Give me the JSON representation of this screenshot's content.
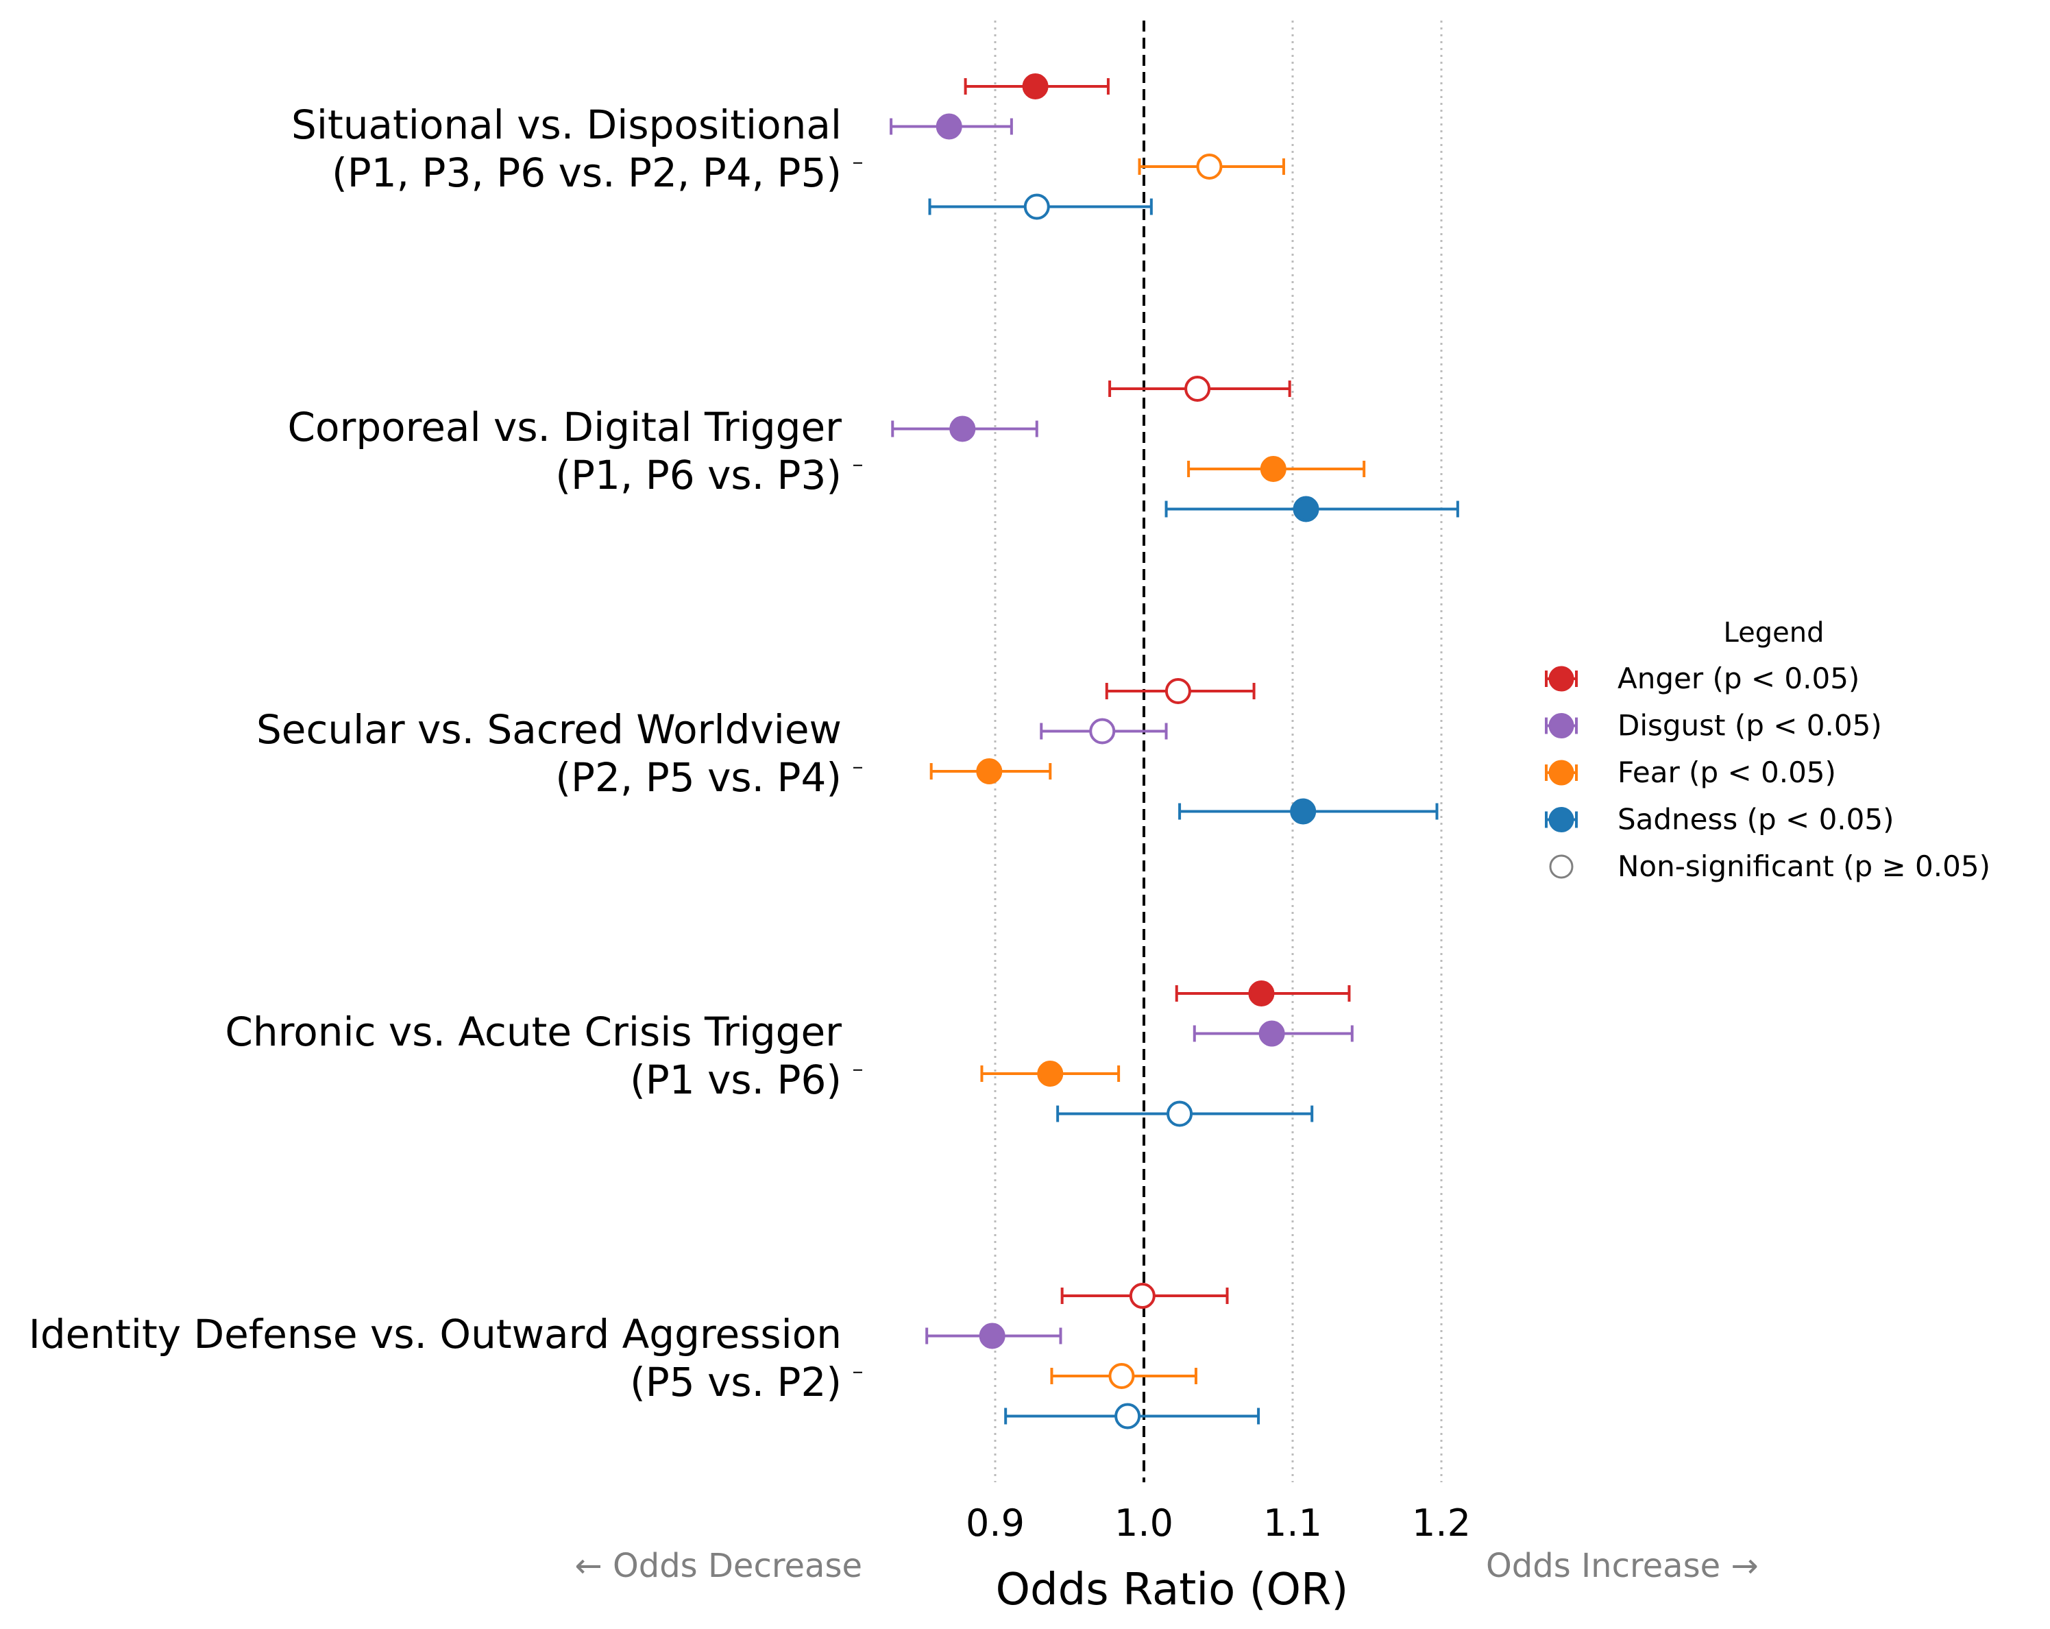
{
  "chart_data": {
    "type": "forest",
    "xlabel": "Odds Ratio (OR)",
    "x_ticks": [
      0.9,
      1.0,
      1.1,
      1.2
    ],
    "x_tick_labels": [
      "0.9",
      "1.0",
      "1.1",
      "1.2"
    ],
    "xlim": [
      0.815,
      1.235
    ],
    "reference_line": 1.0,
    "grid": "vertical-dotted",
    "annotation_left": "← Odds Decrease",
    "annotation_right": "Odds Increase →",
    "legend": {
      "title": "Legend",
      "position": "center-right",
      "items": [
        {
          "label": "Anger (p < 0.05)",
          "color": "#d62728",
          "filled": true
        },
        {
          "label": "Disgust (p < 0.05)",
          "color": "#9467bd",
          "filled": true
        },
        {
          "label": "Fear (p < 0.05)",
          "color": "#ff7f0e",
          "filled": true
        },
        {
          "label": "Sadness (p < 0.05)",
          "color": "#1f77b4",
          "filled": true
        },
        {
          "label": "Non-significant (p ≥ 0.05)",
          "color": "#808080",
          "filled": false
        }
      ]
    },
    "series": [
      {
        "name": "Anger",
        "color": "#d62728"
      },
      {
        "name": "Disgust",
        "color": "#9467bd"
      },
      {
        "name": "Fear",
        "color": "#ff7f0e"
      },
      {
        "name": "Sadness",
        "color": "#1f77b4"
      }
    ],
    "groups": [
      {
        "label_line1": "Situational vs. Dispositional",
        "label_line2": "(P1, P3, P6 vs. P2, P4, P5)",
        "rows": [
          {
            "series": "Anger",
            "or": 0.927,
            "lo": 0.88,
            "hi": 0.976,
            "significant": true
          },
          {
            "series": "Disgust",
            "or": 0.869,
            "lo": 0.83,
            "hi": 0.911,
            "significant": true
          },
          {
            "series": "Fear",
            "or": 1.044,
            "lo": 0.997,
            "hi": 1.094,
            "significant": false
          },
          {
            "series": "Sadness",
            "or": 0.928,
            "lo": 0.856,
            "hi": 1.005,
            "significant": false
          }
        ]
      },
      {
        "label_line1": "Corporeal vs. Digital Trigger",
        "label_line2": "(P1, P6 vs. P3)",
        "rows": [
          {
            "series": "Anger",
            "or": 1.036,
            "lo": 0.977,
            "hi": 1.098,
            "significant": false
          },
          {
            "series": "Disgust",
            "or": 0.878,
            "lo": 0.831,
            "hi": 0.928,
            "significant": true
          },
          {
            "series": "Fear",
            "or": 1.087,
            "lo": 1.03,
            "hi": 1.148,
            "significant": true
          },
          {
            "series": "Sadness",
            "or": 1.109,
            "lo": 1.015,
            "hi": 1.211,
            "significant": true
          }
        ]
      },
      {
        "label_line1": "Secular vs. Sacred Worldview",
        "label_line2": "(P2, P5 vs. P4)",
        "rows": [
          {
            "series": "Anger",
            "or": 1.023,
            "lo": 0.975,
            "hi": 1.074,
            "significant": false
          },
          {
            "series": "Disgust",
            "or": 0.972,
            "lo": 0.931,
            "hi": 1.015,
            "significant": false
          },
          {
            "series": "Fear",
            "or": 0.896,
            "lo": 0.857,
            "hi": 0.937,
            "significant": true
          },
          {
            "series": "Sadness",
            "or": 1.107,
            "lo": 1.024,
            "hi": 1.197,
            "significant": true
          }
        ]
      },
      {
        "label_line1": "Chronic vs. Acute Crisis Trigger",
        "label_line2": "(P1 vs. P6)",
        "rows": [
          {
            "series": "Anger",
            "or": 1.079,
            "lo": 1.022,
            "hi": 1.138,
            "significant": true
          },
          {
            "series": "Disgust",
            "or": 1.086,
            "lo": 1.034,
            "hi": 1.14,
            "significant": true
          },
          {
            "series": "Fear",
            "or": 0.937,
            "lo": 0.891,
            "hi": 0.983,
            "significant": true
          },
          {
            "series": "Sadness",
            "or": 1.024,
            "lo": 0.942,
            "hi": 1.113,
            "significant": false
          }
        ]
      },
      {
        "label_line1": "Identity Defense vs. Outward Aggression",
        "label_line2": "(P5 vs. P2)",
        "rows": [
          {
            "series": "Anger",
            "or": 0.999,
            "lo": 0.945,
            "hi": 1.056,
            "significant": false
          },
          {
            "series": "Disgust",
            "or": 0.898,
            "lo": 0.854,
            "hi": 0.944,
            "significant": true
          },
          {
            "series": "Fear",
            "or": 0.985,
            "lo": 0.938,
            "hi": 1.035,
            "significant": false
          },
          {
            "series": "Sadness",
            "or": 0.989,
            "lo": 0.907,
            "hi": 1.077,
            "significant": false
          }
        ]
      }
    ]
  }
}
